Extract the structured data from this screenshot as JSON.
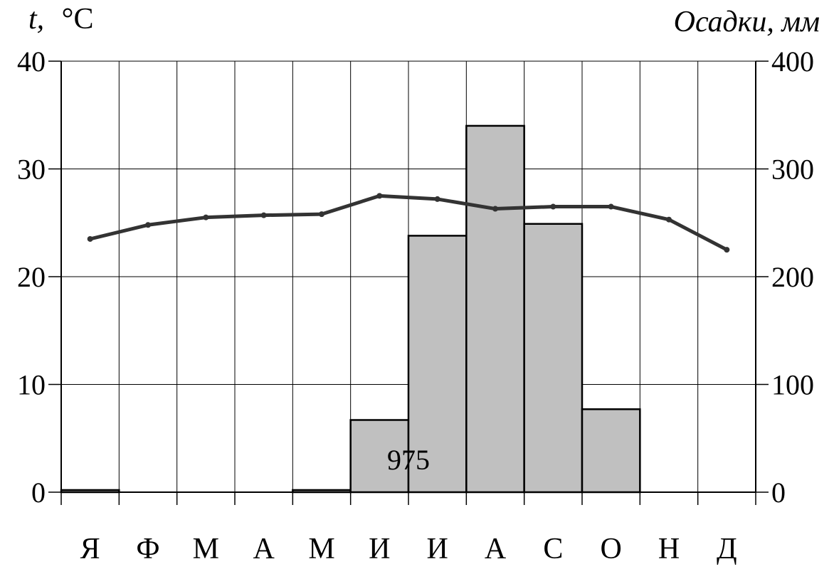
{
  "chart_data": {
    "type": "climate-diagram",
    "left_axis_label_var": "t,",
    "left_axis_label_unit": "°C",
    "right_axis_label": "Осадки, мм",
    "categories": [
      "Я",
      "Ф",
      "М",
      "А",
      "М",
      "И",
      "И",
      "А",
      "С",
      "О",
      "Н",
      "Д"
    ],
    "temperature": {
      "axis": "left",
      "ylim": [
        0,
        40
      ],
      "ticks": [
        "0",
        "10",
        "20",
        "30",
        "40"
      ],
      "values": [
        23.5,
        24.8,
        25.5,
        25.7,
        25.8,
        27.5,
        27.2,
        26.3,
        26.5,
        26.5,
        25.3,
        22.5
      ],
      "color": "#333333"
    },
    "precipitation": {
      "axis": "right",
      "ylim": [
        0,
        400
      ],
      "ticks": [
        "0",
        "100",
        "200",
        "300",
        "400"
      ],
      "values": [
        2,
        0,
        0,
        0,
        2,
        67,
        238,
        340,
        249,
        77,
        0,
        0
      ],
      "fill": "#c0c0c0"
    },
    "annual_total_label": "975",
    "grid": true
  }
}
